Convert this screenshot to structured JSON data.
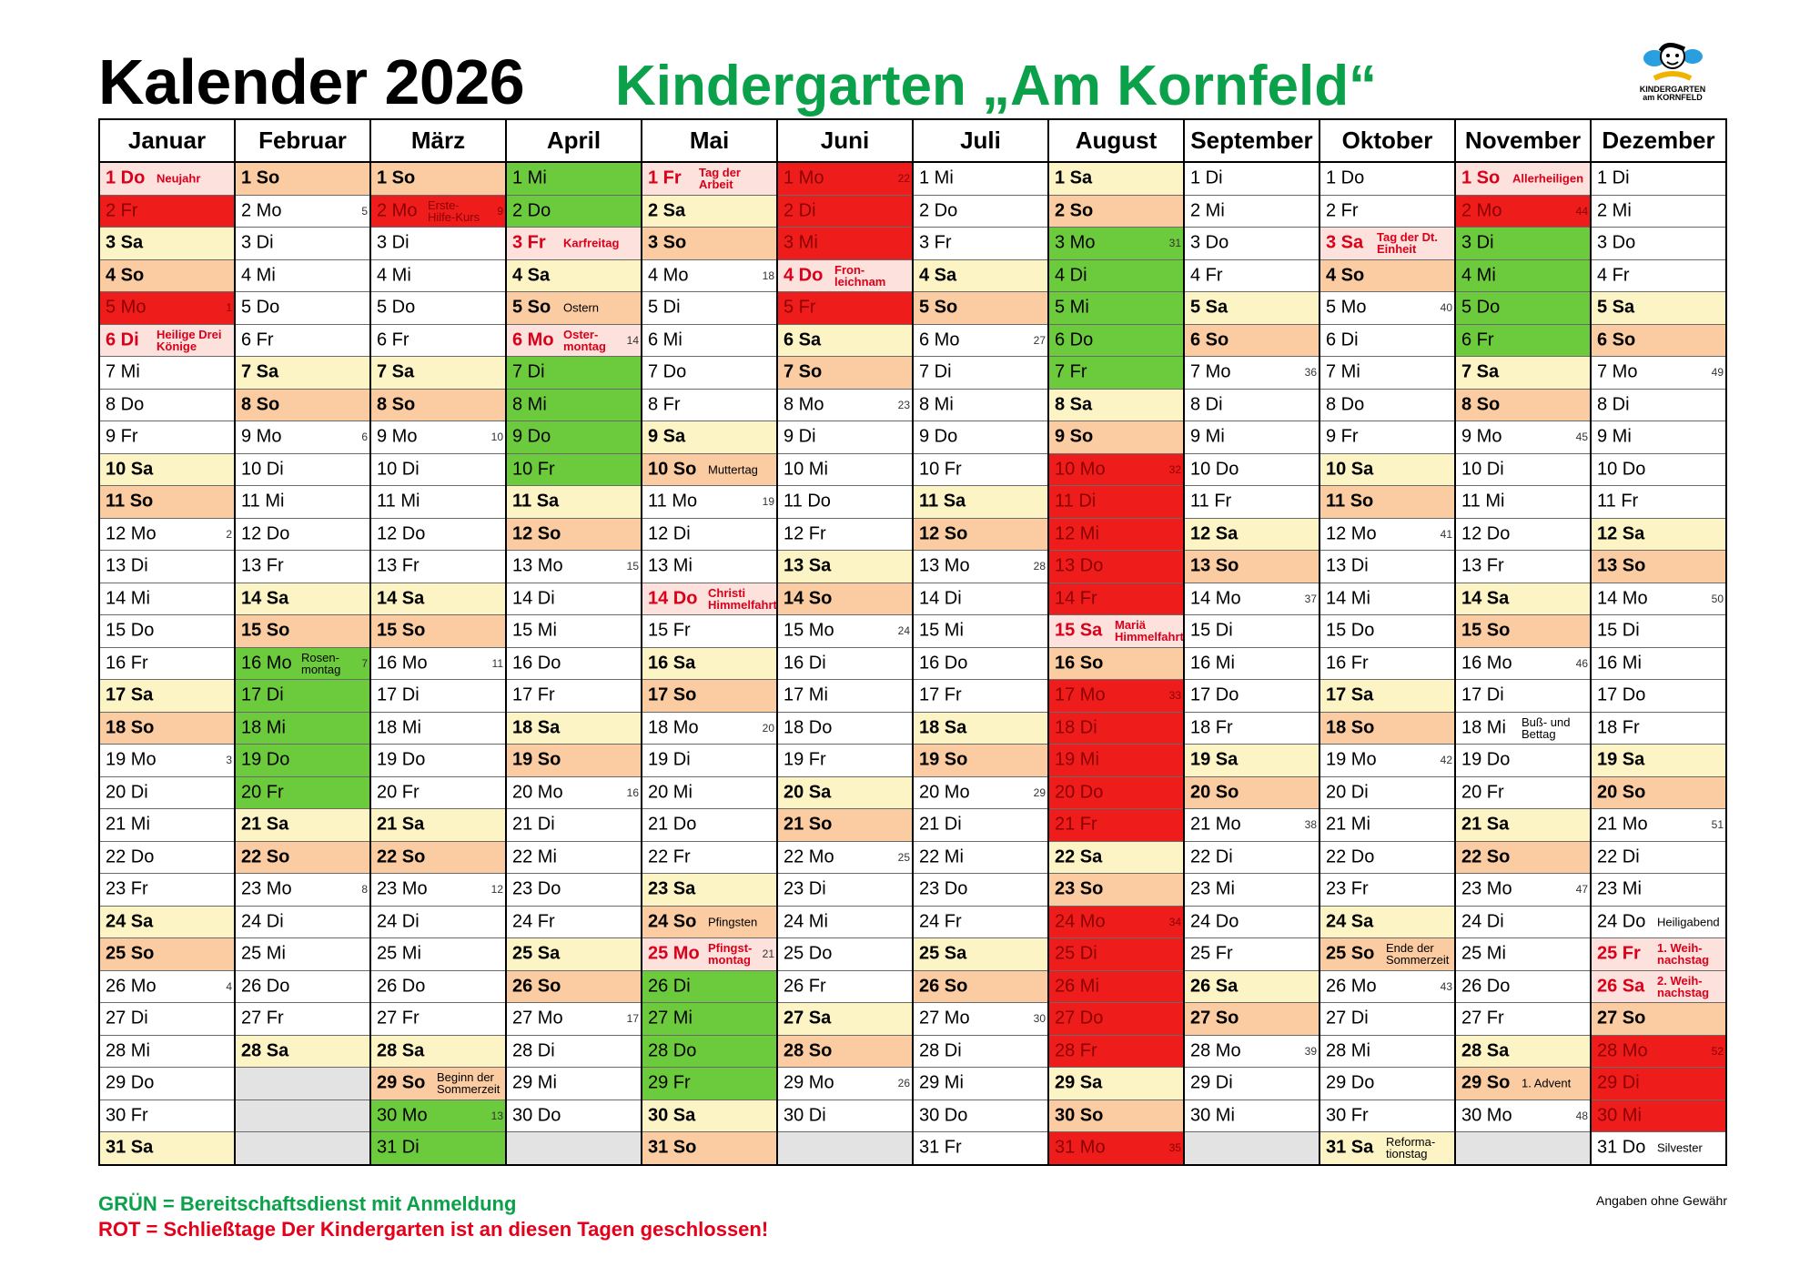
{
  "header": {
    "title": "Kalender 2026",
    "subtitle": "Kindergarten „Am Kornfeld“",
    "logo_line1": "KINDERGARTEN",
    "logo_line2": "am KORNFELD"
  },
  "months": [
    "Januar",
    "Februar",
    "März",
    "April",
    "Mai",
    "Juni",
    "Juli",
    "August",
    "September",
    "Oktober",
    "November",
    "Dezember"
  ],
  "legend": {
    "green": "GRÜN = Bereitschaftsdienst mit Anmeldung",
    "red": "ROT = Schließtage  Der Kindergarten ist an diesen Tagen geschlossen!"
  },
  "disclaimer": "Angaben ohne Gewähr",
  "colors": {
    "saturday": "#fcf4c4",
    "sunday": "#fbcba1",
    "holiday": "#fde1dc",
    "standby_green": "#6ccb3c",
    "closed_red": "#ef1c1c",
    "empty": "#e3e3e3",
    "title_green": "#0ba14a",
    "legend_red": "#e4001b"
  },
  "calendar": {
    "start_weekday": 4,
    "day_names": [
      "Mo",
      "Di",
      "Mi",
      "Do",
      "Fr",
      "Sa",
      "So"
    ],
    "month_lengths": [
      31,
      28,
      31,
      30,
      31,
      30,
      31,
      31,
      30,
      31,
      30,
      31
    ],
    "week_numbers_on_mondays": [
      1,
      2,
      3,
      4,
      5,
      6,
      7,
      8,
      9,
      10,
      11,
      12,
      13,
      14,
      15,
      16,
      17,
      18,
      19,
      20,
      21,
      22,
      23,
      24,
      25,
      26,
      27,
      28,
      29,
      30,
      31,
      32,
      33,
      34,
      35,
      36,
      37,
      38,
      39,
      40,
      41,
      42,
      43,
      44,
      45,
      46,
      47,
      48,
      49,
      50,
      51,
      52
    ],
    "holidays": [
      {
        "month": 1,
        "day": 1,
        "note": "Neujahr"
      },
      {
        "month": 1,
        "day": 6,
        "note": "Heilige Drei\nKönige"
      },
      {
        "month": 4,
        "day": 3,
        "note": "Karfreitag"
      },
      {
        "month": 4,
        "day": 5,
        "note": "Ostern",
        "plain": true
      },
      {
        "month": 4,
        "day": 6,
        "note": "Oster-\nmontag"
      },
      {
        "month": 5,
        "day": 1,
        "note": "Tag der\nArbeit"
      },
      {
        "month": 5,
        "day": 10,
        "note": "Muttertag",
        "plain": true
      },
      {
        "month": 5,
        "day": 14,
        "note": "Christi\nHimmelfahrt"
      },
      {
        "month": 5,
        "day": 24,
        "note": "Pfingsten",
        "plain": true
      },
      {
        "month": 5,
        "day": 25,
        "note": "Pfingst-\nmontag"
      },
      {
        "month": 6,
        "day": 4,
        "note": "Fron-\nleichnam"
      },
      {
        "month": 8,
        "day": 15,
        "note": "Mariä\nHimmelfahrt"
      },
      {
        "month": 10,
        "day": 3,
        "note": "Tag der Dt.\nEinheit"
      },
      {
        "month": 10,
        "day": 25,
        "note": "Ende der\nSommerzeit",
        "plain": true
      },
      {
        "month": 10,
        "day": 31,
        "note": "Reforma-\ntionstag",
        "plain": true
      },
      {
        "month": 11,
        "day": 1,
        "note": "Allerheiligen"
      },
      {
        "month": 11,
        "day": 18,
        "note": "Buß- und\nBettag",
        "plain": true
      },
      {
        "month": 11,
        "day": 29,
        "note": "1. Advent",
        "plain": true
      },
      {
        "month": 12,
        "day": 24,
        "note": "Heiligabend",
        "plain": true
      },
      {
        "month": 12,
        "day": 25,
        "note": "1. Weih-\nnachstag"
      },
      {
        "month": 12,
        "day": 26,
        "note": "2. Weih-\nnachstag"
      },
      {
        "month": 12,
        "day": 31,
        "note": "Silvester",
        "plain": true
      },
      {
        "month": 3,
        "day": 2,
        "note": "Erste-\nHilfe-Kurs",
        "plain": true
      },
      {
        "month": 3,
        "day": 29,
        "note": "Beginn der\nSommerzeit",
        "plain": true
      },
      {
        "month": 2,
        "day": 16,
        "note": "Rosen-\nmontag",
        "plain": true
      }
    ],
    "closed_days": [
      {
        "month": 1,
        "days": [
          2,
          5
        ]
      },
      {
        "month": 2,
        "days": []
      },
      {
        "month": 3,
        "days": [
          2
        ]
      },
      {
        "month": 6,
        "days": [
          1,
          2,
          3,
          5
        ]
      },
      {
        "month": 8,
        "from": 10,
        "to": 14
      },
      {
        "month": 8,
        "from": 17,
        "to": 21
      },
      {
        "month": 8,
        "from": 24,
        "to": 28
      },
      {
        "month": 8,
        "days": [
          31
        ]
      },
      {
        "month": 11,
        "days": [
          2
        ]
      },
      {
        "month": 12,
        "from": 28,
        "to": 30
      }
    ],
    "standby_days": [
      {
        "month": 2,
        "from": 16,
        "to": 20
      },
      {
        "month": 3,
        "from": 30,
        "to": 31
      },
      {
        "month": 4,
        "from": 1,
        "to": 2
      },
      {
        "month": 4,
        "from": 7,
        "to": 10
      },
      {
        "month": 5,
        "from": 26,
        "to": 29
      },
      {
        "month": 8,
        "from": 3,
        "to": 7
      },
      {
        "month": 11,
        "from": 3,
        "to": 6
      }
    ]
  }
}
